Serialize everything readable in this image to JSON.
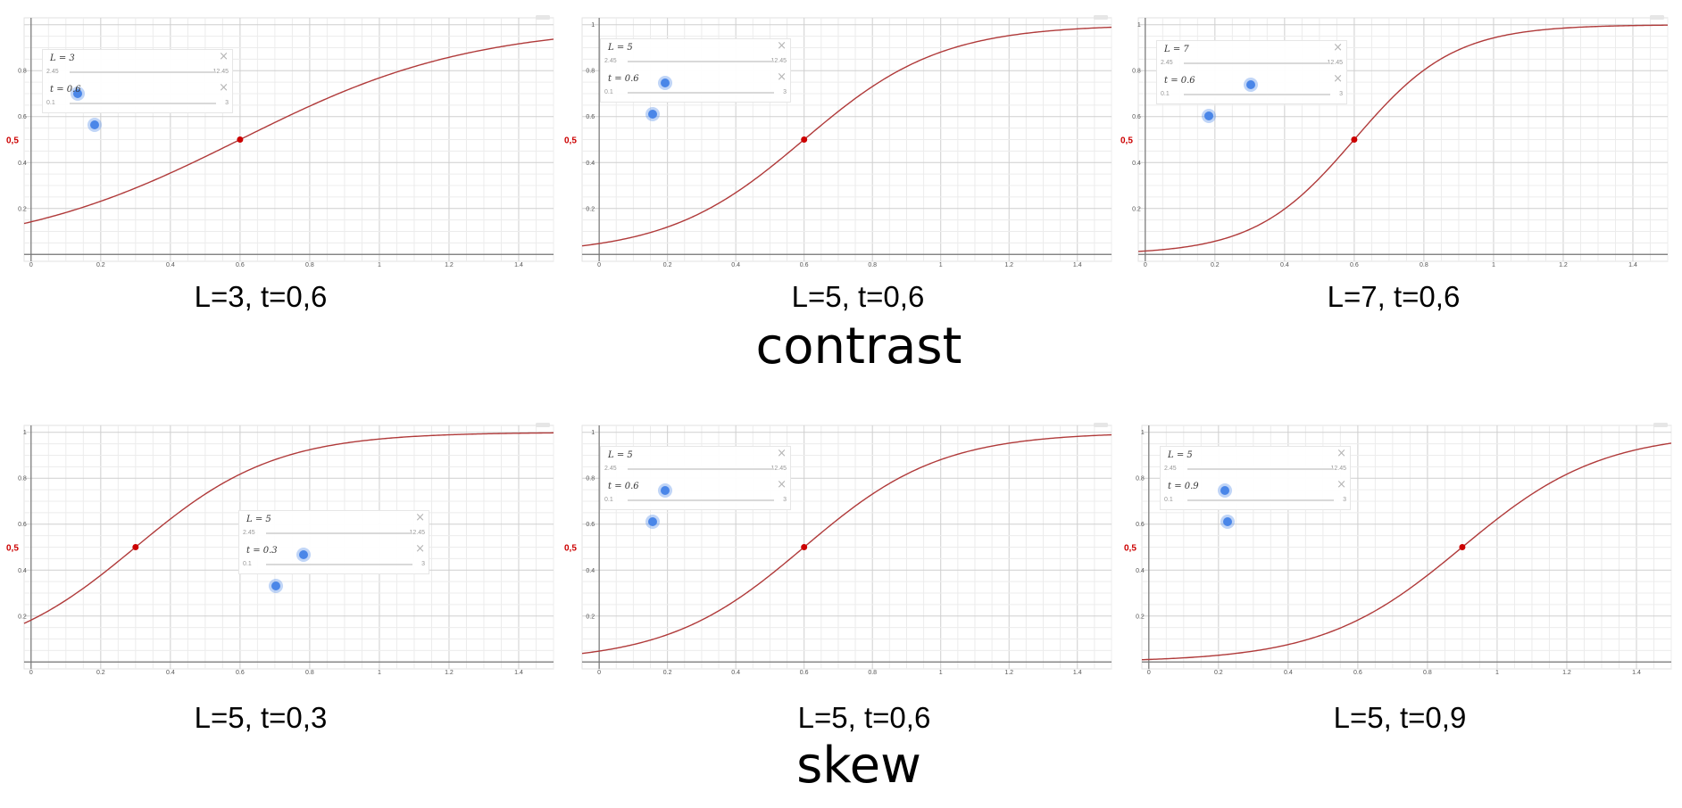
{
  "section_titles": {
    "top": "contrast",
    "bottom": "skew"
  },
  "slider_close_glyph": "×",
  "colors": {
    "curve": "#b03a3a",
    "point": "#cc0000",
    "grid_minor": "#ececec",
    "grid_major": "#cfcfcf",
    "axis": "#777777",
    "slider_knob": "#4a86e8"
  },
  "chart_data": [
    {
      "type": "line",
      "caption": "L=3, t=0,6",
      "L": 3,
      "t": 0.6,
      "xlim": [
        -0.02,
        1.5
      ],
      "ylim": [
        -0.03,
        1.03
      ],
      "x_ticks": [
        "0",
        "0.2",
        "0.4",
        "0.6",
        "0.8",
        "1",
        "1.2",
        "1.4"
      ],
      "y_ticks": [
        "0.2",
        "0.4",
        "0.6",
        "0.8"
      ],
      "highlight_label": "0,5",
      "highlight_point": [
        0.6,
        0.5
      ],
      "sliders": [
        {
          "label": "L = 3",
          "min": "2.45",
          "max": "12.45",
          "value": 3,
          "range": [
            2.45,
            12.45
          ]
        },
        {
          "label": "t = 0.6",
          "min": "0.1",
          "max": "3",
          "value": 0.6,
          "range": [
            0.1,
            3
          ]
        }
      ]
    },
    {
      "type": "line",
      "caption": "L=5, t=0,6",
      "L": 5,
      "t": 0.6,
      "xlim": [
        -0.05,
        1.5
      ],
      "ylim": [
        -0.03,
        1.03
      ],
      "x_ticks": [
        "0",
        "0.2",
        "0.4",
        "0.6",
        "0.8",
        "1",
        "1.2",
        "1.4"
      ],
      "y_ticks": [
        "0.2",
        "0.4",
        "0.6",
        "0.8",
        "1"
      ],
      "highlight_label": "0,5",
      "highlight_point": [
        0.6,
        0.5
      ],
      "sliders": [
        {
          "label": "L = 5",
          "min": "2.45",
          "max": "12.45",
          "value": 5,
          "range": [
            2.45,
            12.45
          ]
        },
        {
          "label": "t = 0.6",
          "min": "0.1",
          "max": "3",
          "value": 0.6,
          "range": [
            0.1,
            3
          ]
        }
      ]
    },
    {
      "type": "line",
      "caption": "L=7, t=0,6",
      "L": 7,
      "t": 0.6,
      "xlim": [
        -0.02,
        1.5
      ],
      "ylim": [
        -0.03,
        1.03
      ],
      "x_ticks": [
        "0",
        "0.2",
        "0.4",
        "0.6",
        "0.8",
        "1",
        "1.2",
        "1.4"
      ],
      "y_ticks": [
        "0.2",
        "0.4",
        "0.6",
        "0.8",
        "1"
      ],
      "highlight_label": "0,5",
      "highlight_point": [
        0.6,
        0.5
      ],
      "sliders": [
        {
          "label": "L = 7",
          "min": "2.45",
          "max": "12.45",
          "value": 7,
          "range": [
            2.45,
            12.45
          ]
        },
        {
          "label": "t = 0.6",
          "min": "0.1",
          "max": "3",
          "value": 0.6,
          "range": [
            0.1,
            3
          ]
        }
      ]
    },
    {
      "type": "line",
      "caption": "L=5, t=0,3",
      "L": 5,
      "t": 0.3,
      "xlim": [
        -0.02,
        1.5
      ],
      "ylim": [
        -0.03,
        1.03
      ],
      "x_ticks": [
        "0",
        "0.2",
        "0.4",
        "0.6",
        "0.8",
        "1",
        "1.2",
        "1.4"
      ],
      "y_ticks": [
        "0.2",
        "0.4",
        "0.6",
        "0.8",
        "1"
      ],
      "highlight_label": "0,5",
      "highlight_point": [
        0.3,
        0.5
      ],
      "sliders": [
        {
          "label": "L = 5",
          "min": "2.45",
          "max": "12.45",
          "value": 5,
          "range": [
            2.45,
            12.45
          ]
        },
        {
          "label": "t = 0.3",
          "min": "0.1",
          "max": "3",
          "value": 0.3,
          "range": [
            0.1,
            3
          ]
        }
      ]
    },
    {
      "type": "line",
      "caption": "L=5, t=0,6",
      "L": 5,
      "t": 0.6,
      "xlim": [
        -0.05,
        1.5
      ],
      "ylim": [
        -0.03,
        1.03
      ],
      "x_ticks": [
        "0",
        "0.2",
        "0.4",
        "0.6",
        "0.8",
        "1",
        "1.2",
        "1.4"
      ],
      "y_ticks": [
        "0.2",
        "0.4",
        "0.6",
        "0.8",
        "1"
      ],
      "highlight_label": "0,5",
      "highlight_point": [
        0.6,
        0.5
      ],
      "sliders": [
        {
          "label": "L = 5",
          "min": "2.45",
          "max": "12.45",
          "value": 5,
          "range": [
            2.45,
            12.45
          ]
        },
        {
          "label": "t = 0.6",
          "min": "0.1",
          "max": "3",
          "value": 0.6,
          "range": [
            0.1,
            3
          ]
        }
      ]
    },
    {
      "type": "line",
      "caption": "L=5, t=0,9",
      "L": 5,
      "t": 0.9,
      "xlim": [
        -0.02,
        1.5
      ],
      "ylim": [
        -0.03,
        1.03
      ],
      "x_ticks": [
        "0",
        "0.2",
        "0.4",
        "0.6",
        "0.8",
        "1",
        "1.2",
        "1.4"
      ],
      "y_ticks": [
        "0.2",
        "0.4",
        "0.6",
        "0.8",
        "1"
      ],
      "highlight_label": "0,5",
      "highlight_point": [
        0.9,
        0.5
      ],
      "sliders": [
        {
          "label": "L = 5",
          "min": "2.45",
          "max": "12.45",
          "value": 5,
          "range": [
            2.45,
            12.45
          ]
        },
        {
          "label": "t = 0.9",
          "min": "0.1",
          "max": "3",
          "value": 0.9,
          "range": [
            0.1,
            3
          ]
        }
      ]
    }
  ]
}
